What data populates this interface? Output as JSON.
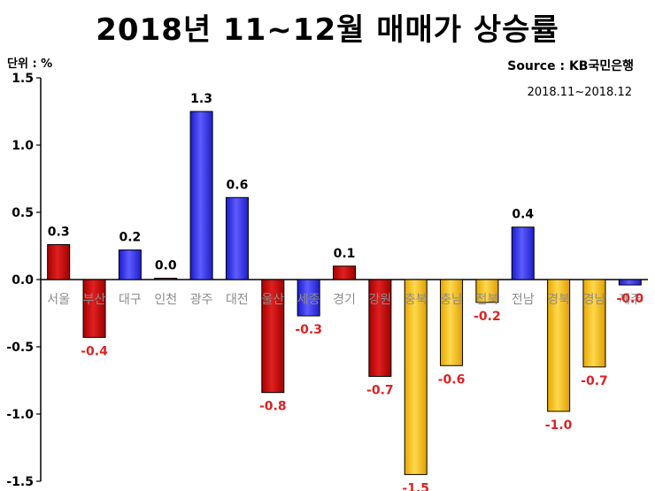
{
  "title": "2018년 11~12월 매매가 상승률",
  "unit_label": "단위 : %",
  "source": "Source :  KB국민은행",
  "period": "2018.11~2018.12",
  "colors": {
    "rise": "#3333ee",
    "fall": "#cc0000",
    "yellow": "#ffcc00",
    "positive_label": "#000000",
    "negative_label": "#dd2222",
    "category_label": "#8c8c8c"
  },
  "chart_data": {
    "type": "bar",
    "title": "2018년 11~12월 매매가 상승률",
    "categories": [
      "서울",
      "부산",
      "대구",
      "인천",
      "광주",
      "대전",
      "울산",
      "세종",
      "경기",
      "강원",
      "충북",
      "충남",
      "전북",
      "전남",
      "경북",
      "경남",
      "제주"
    ],
    "values": [
      0.26,
      -0.43,
      0.22,
      0.01,
      1.25,
      0.61,
      -0.84,
      -0.27,
      0.1,
      -0.72,
      -1.45,
      -0.64,
      -0.17,
      0.39,
      -0.98,
      -0.65,
      -0.04
    ],
    "data_labels": [
      "0.3",
      "-0.4",
      "0.2",
      "0.0",
      "1.3",
      "0.6",
      "-0.8",
      "-0.3",
      "0.1",
      "-0.7",
      "-1.5",
      "-0.6",
      "-0.2",
      "0.4",
      "-1.0",
      "-0.7",
      "-0.0"
    ],
    "bar_colors": [
      "fall",
      "fall",
      "rise",
      "fall",
      "rise",
      "rise",
      "fall",
      "rise",
      "fall",
      "fall",
      "yellow",
      "yellow",
      "yellow",
      "rise",
      "yellow",
      "yellow",
      "rise"
    ],
    "ylim": [
      -1.5,
      1.5
    ],
    "yticks": [
      "1.5",
      "1.0",
      "0.5",
      "0.0",
      "-0.5",
      "-1.0",
      "-1.5"
    ],
    "xlabel": "",
    "ylabel": "",
    "grid": false,
    "legend": "none"
  }
}
